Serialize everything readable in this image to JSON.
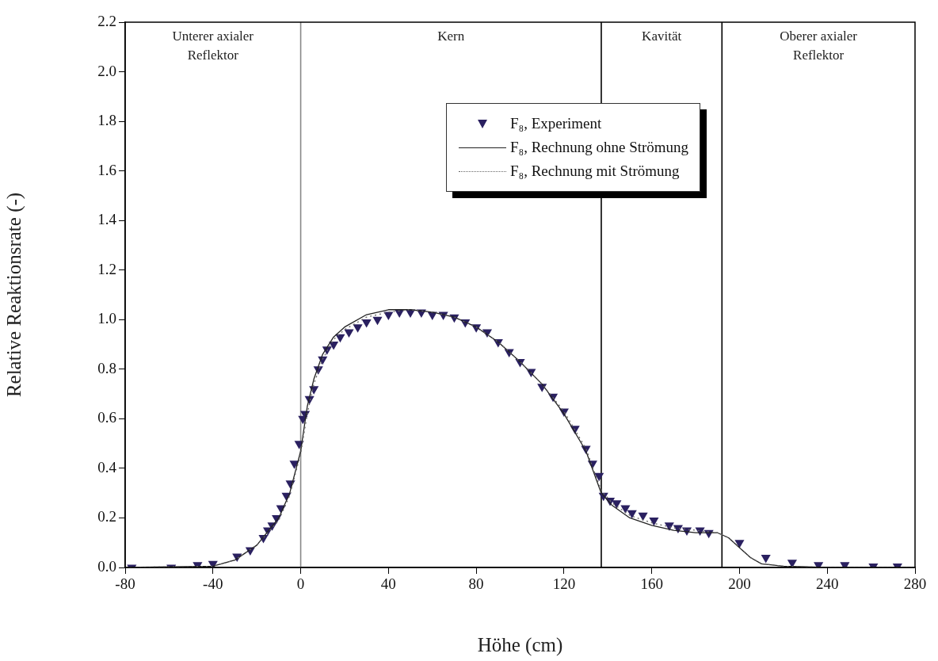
{
  "chart_data": {
    "type": "line",
    "xlabel": "Höhe (cm)",
    "ylabel": "Relative Reaktionsrate (-)",
    "xlim": [
      -80,
      280
    ],
    "xticks": [
      -80,
      -40,
      0,
      40,
      80,
      120,
      160,
      200,
      240,
      280
    ],
    "ylim": [
      0,
      2.2
    ],
    "yticks": [
      {
        "value": 0,
        "label": "0.0"
      },
      {
        "value": 0.2,
        "label": "0.2"
      },
      {
        "value": 0.4,
        "label": "0.4"
      },
      {
        "value": 0.6,
        "label": "0.6"
      },
      {
        "value": 0.8,
        "label": "0.8"
      },
      {
        "value": 1,
        "label": "1.0"
      },
      {
        "value": 1.2,
        "label": "1.2"
      },
      {
        "value": 1.4,
        "label": "1.4"
      },
      {
        "value": 1.6,
        "label": "1.6"
      },
      {
        "value": 1.8,
        "label": "1.8"
      },
      {
        "value": 2,
        "label": "2.0"
      },
      {
        "value": 2.2,
        "label": "2.2"
      }
    ],
    "grid": false,
    "legend": "top right",
    "series": [
      {
        "name": "F₈, Experiment",
        "type": "scatter",
        "marker": "triangle",
        "color": "#2a2060",
        "x": [
          -77,
          -59,
          -47,
          -40,
          -29,
          -23,
          -17,
          -15,
          -13,
          -11,
          -9,
          -6.5,
          -4.7,
          -2.9,
          -0.7,
          1,
          2,
          4,
          6,
          8,
          10,
          12,
          15,
          18,
          22,
          26,
          30,
          35,
          40,
          45,
          50,
          55,
          60,
          65,
          70,
          75,
          80,
          85,
          90,
          95,
          100,
          105,
          110,
          115,
          120,
          125,
          130,
          133,
          136,
          138,
          141,
          144,
          148,
          151,
          156,
          161,
          168,
          172,
          176,
          182,
          186,
          200,
          212,
          224,
          236,
          248,
          261,
          272
        ],
        "values": [
          0,
          0,
          0.01,
          0.015,
          0.045,
          0.07,
          0.12,
          0.15,
          0.17,
          0.2,
          0.24,
          0.29,
          0.34,
          0.42,
          0.5,
          0.6,
          0.62,
          0.68,
          0.72,
          0.8,
          0.84,
          0.88,
          0.9,
          0.93,
          0.95,
          0.97,
          0.99,
          1,
          1.02,
          1.03,
          1.03,
          1.03,
          1.02,
          1.02,
          1.01,
          0.99,
          0.97,
          0.95,
          0.91,
          0.87,
          0.83,
          0.79,
          0.73,
          0.69,
          0.63,
          0.56,
          0.48,
          0.42,
          0.37,
          0.29,
          0.27,
          0.26,
          0.24,
          0.22,
          0.21,
          0.19,
          0.17,
          0.16,
          0.15,
          0.15,
          0.14,
          0.1,
          0.04,
          0.02,
          0.01,
          0.01,
          0.005,
          0.005
        ]
      },
      {
        "name": "F₈, Rechnung ohne Strömung",
        "type": "line",
        "line_style": "solid",
        "marker": "none",
        "color": "#222222",
        "x": [
          -80,
          -40,
          -30,
          -20,
          -10,
          -5,
          0,
          3,
          6,
          10,
          15,
          20,
          30,
          40,
          50,
          60,
          70,
          80,
          90,
          100,
          110,
          120,
          130,
          137,
          142,
          150,
          160,
          170,
          180,
          190,
          195,
          200,
          205,
          210,
          220,
          240,
          280
        ],
        "values": [
          0,
          0.005,
          0.03,
          0.09,
          0.2,
          0.3,
          0.47,
          0.65,
          0.76,
          0.86,
          0.93,
          0.97,
          1.02,
          1.04,
          1.04,
          1.03,
          1.01,
          0.97,
          0.91,
          0.83,
          0.74,
          0.62,
          0.47,
          0.3,
          0.25,
          0.2,
          0.17,
          0.15,
          0.14,
          0.14,
          0.12,
          0.08,
          0.04,
          0.015,
          0.005,
          0,
          0
        ]
      },
      {
        "name": "F₈, Rechnung mit Strömung",
        "type": "line",
        "line_style": "dotted",
        "marker": "none",
        "color": "#666666",
        "x": [
          -80,
          -40,
          -30,
          -20,
          -10,
          -5,
          0,
          3,
          6,
          10,
          15,
          20,
          30,
          40,
          50,
          60,
          70,
          80,
          90,
          100,
          110,
          120,
          130,
          137,
          142,
          150,
          160,
          170,
          180,
          190,
          195,
          200,
          205,
          210,
          220,
          240,
          280
        ],
        "values": [
          0,
          0.005,
          0.03,
          0.09,
          0.19,
          0.29,
          0.46,
          0.62,
          0.74,
          0.84,
          0.92,
          0.96,
          1.01,
          1.03,
          1.04,
          1.03,
          1.01,
          0.97,
          0.91,
          0.83,
          0.74,
          0.63,
          0.48,
          0.31,
          0.26,
          0.21,
          0.18,
          0.16,
          0.15,
          0.14,
          0.12,
          0.08,
          0.04,
          0.015,
          0.005,
          0,
          0
        ]
      }
    ],
    "ref_lines": [
      {
        "axis": "x",
        "value": 0,
        "color": "#888888"
      },
      {
        "axis": "x",
        "value": 137,
        "color": "#000000"
      },
      {
        "axis": "x",
        "value": 192,
        "color": "#000000"
      }
    ],
    "annotations": [
      "Unterer axialer\nReflektor",
      "Kern",
      "Kavität",
      "Oberer axialer\nReflektor"
    ]
  }
}
